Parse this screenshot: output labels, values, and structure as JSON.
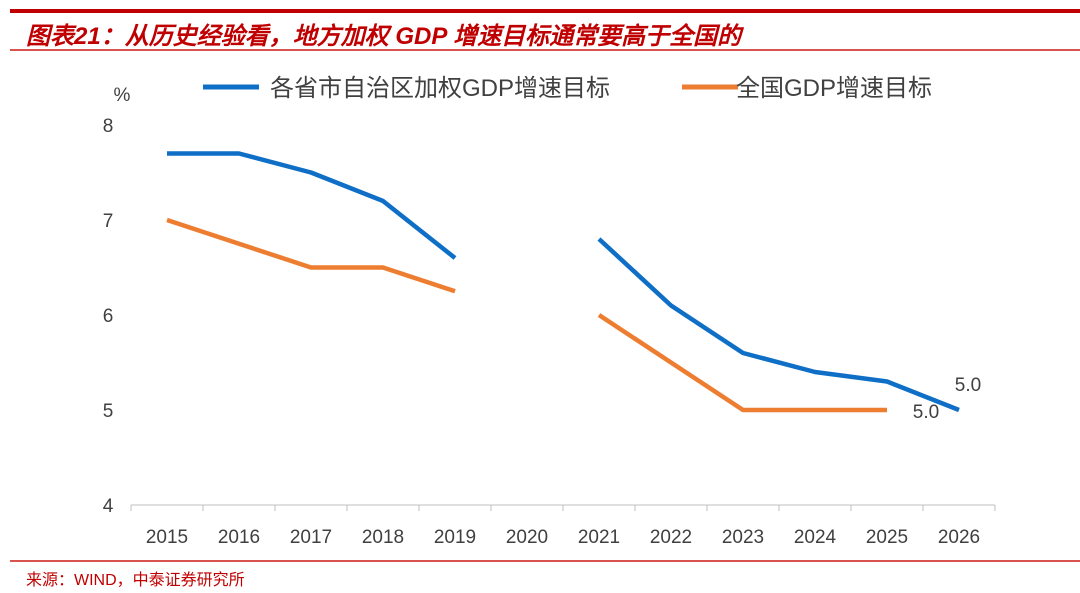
{
  "title": "图表21：从历史经验看，地方加权 GDP 增速目标通常要高于全国的",
  "source": "来源：WIND，中泰证券研究所",
  "chart_data": {
    "type": "line",
    "ylabel": "%",
    "ylim": [
      4,
      8
    ],
    "yticks": [
      "4",
      "5",
      "6",
      "7",
      "8"
    ],
    "grid": false,
    "legend_position": "top",
    "categories": [
      "2015",
      "2016",
      "2017",
      "2018",
      "2019",
      "2020",
      "2021",
      "2022",
      "2023",
      "2024",
      "2025",
      "2026"
    ],
    "series": [
      {
        "name": "各省市自治区加权GDP增速目标",
        "color": "#0f6fc6",
        "values": [
          7.7,
          7.7,
          7.5,
          7.2,
          6.6,
          null,
          6.8,
          6.1,
          5.6,
          5.4,
          5.3,
          5.0
        ]
      },
      {
        "name": "全国GDP增速目标",
        "color": "#ed7d31",
        "values": [
          7.0,
          6.75,
          6.5,
          6.5,
          6.25,
          null,
          6.0,
          5.5,
          5.0,
          5.0,
          5.0,
          null
        ]
      }
    ],
    "annotations": [
      "5.0",
      "5.0"
    ]
  }
}
